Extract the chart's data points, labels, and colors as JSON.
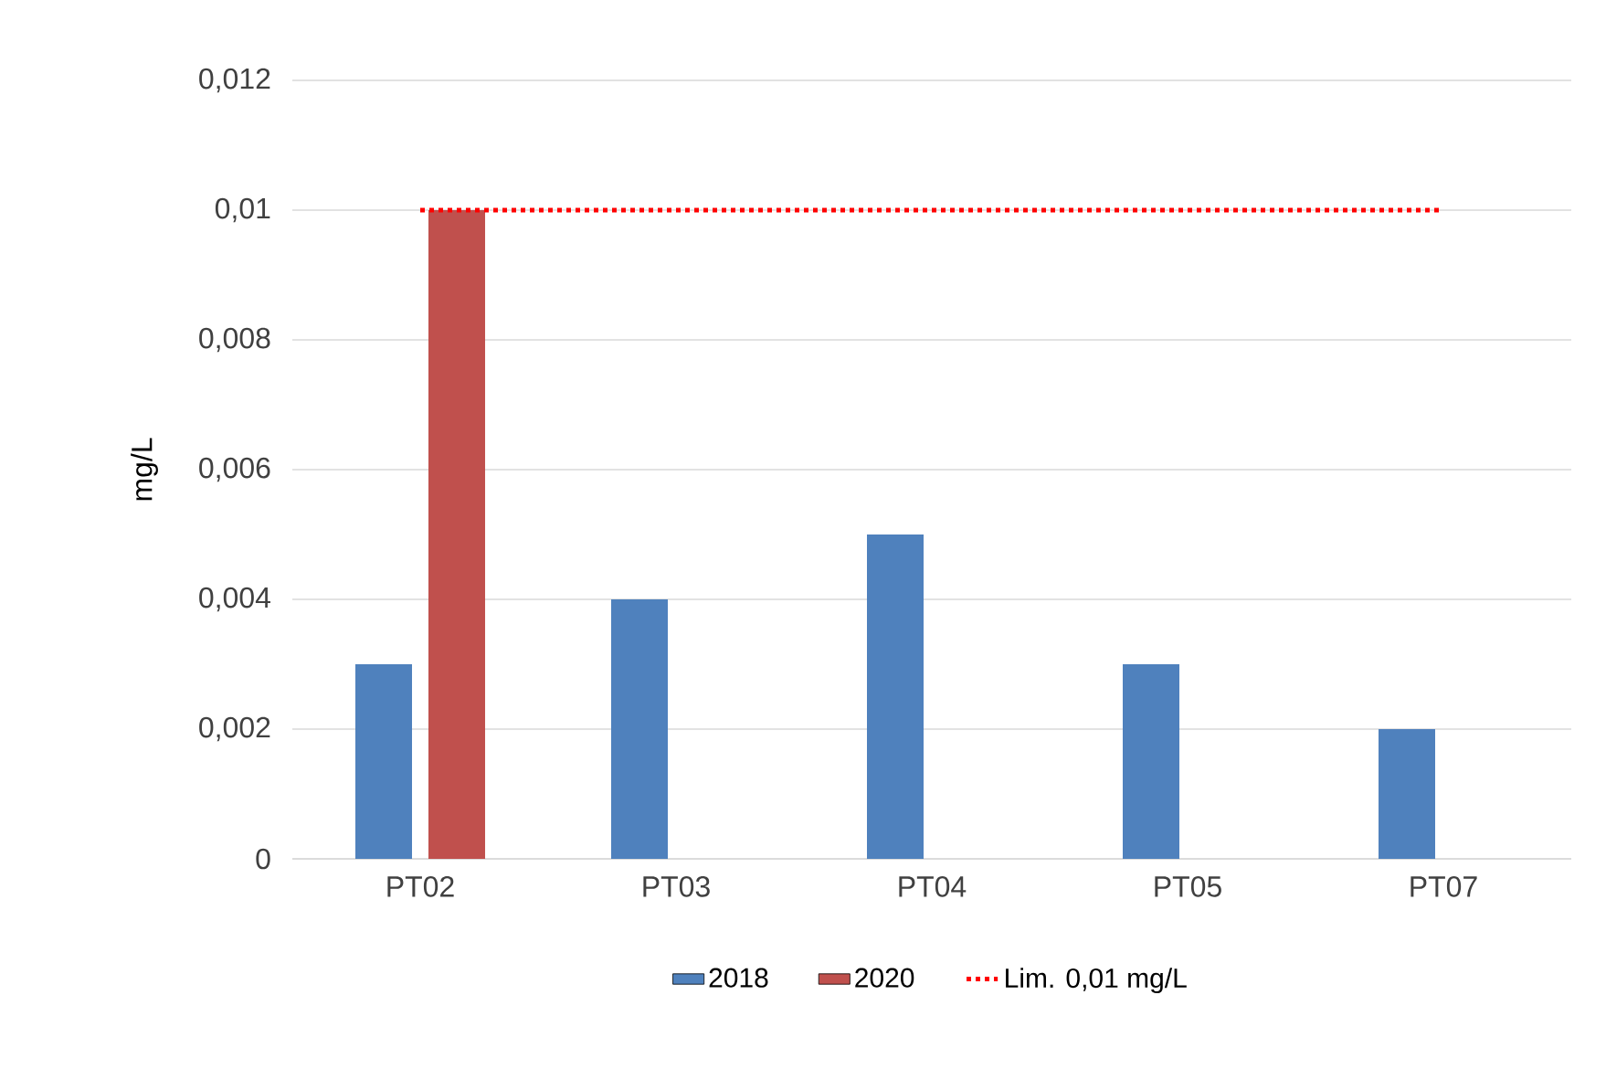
{
  "chart_data": {
    "type": "bar",
    "ylabel": "mg/L",
    "categories": [
      "PT02",
      "PT03",
      "PT04",
      "PT05",
      "PT07"
    ],
    "series": [
      {
        "name": "2018",
        "color": "#4f81bd",
        "values": [
          0.003,
          0.004,
          0.005,
          0.003,
          0.002
        ]
      },
      {
        "name": "2020",
        "color": "#c0504d",
        "values": [
          0.01,
          null,
          null,
          null,
          null
        ]
      },
      {
        "name": "Lim. 0,01 mg/L",
        "type": "line",
        "line_style": "dotted",
        "color": "#ff0000",
        "values": [
          0.01,
          0.01,
          0.01,
          0.01,
          0.01
        ]
      }
    ],
    "ylim": [
      0,
      0.012
    ],
    "yticks": [
      0,
      {
        "value": 0.002,
        "label": "0,002"
      },
      {
        "value": 0.004,
        "label": "0,004"
      },
      {
        "value": 0.006,
        "label": "0,006"
      },
      {
        "value": 0.008,
        "label": "0,008"
      },
      {
        "value": 0.01,
        "label": "0,01"
      },
      {
        "value": 0.012,
        "label": "0,012"
      }
    ],
    "grid": "y",
    "legend": "bottom"
  }
}
